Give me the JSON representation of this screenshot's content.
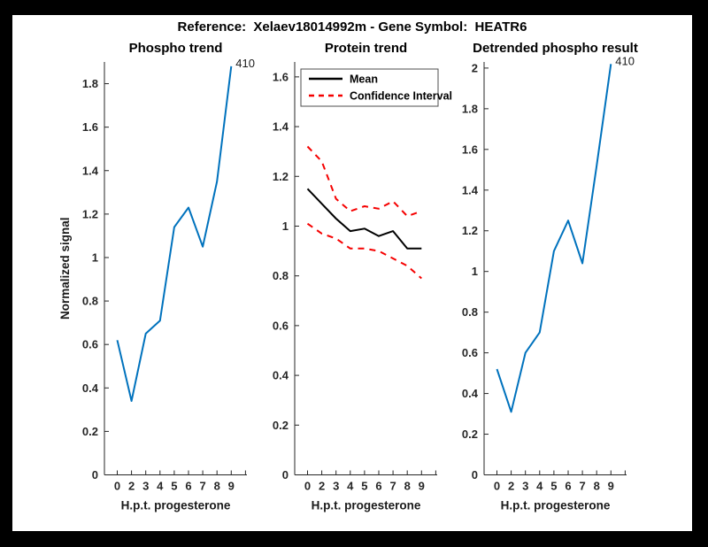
{
  "figure": {
    "suptitle": "Reference:  Xelaev18014992m - Gene Symbol:  HEATR6",
    "background_color": "#ffffff",
    "frame_color": "#000000",
    "axis_color": "#262626",
    "accent_blue": "#0072bd",
    "accent_red": "#f50000"
  },
  "chart_data": [
    {
      "type": "line",
      "title": "Phospho trend",
      "xlabel": "H.p.t. progesterone",
      "ylabel": "Normalized signal",
      "categories": [
        "0",
        "2",
        "3",
        "4",
        "5",
        "6",
        "7",
        "8",
        "9"
      ],
      "x_tick_labels": [
        "0",
        "2",
        "3",
        "4",
        "5",
        "6",
        "7",
        "8",
        "9",
        ""
      ],
      "ylim": [
        0,
        1.9
      ],
      "ytick_step": 0.2,
      "ytick_max": 1.8,
      "grid": "off",
      "series": [
        {
          "name": "Phospho signal",
          "color": "#0072bd",
          "dash": null,
          "values": [
            0.62,
            0.34,
            0.65,
            0.71,
            1.14,
            1.23,
            1.05,
            1.35,
            1.88
          ]
        }
      ],
      "annotation": {
        "text": "410",
        "point_index": 8
      },
      "legend": null
    },
    {
      "type": "line",
      "title": "Protein trend",
      "xlabel": "H.p.t. progesterone",
      "ylabel": "",
      "categories": [
        "0",
        "2",
        "3",
        "4",
        "5",
        "6",
        "7",
        "8",
        "9"
      ],
      "x_tick_labels": [
        "0",
        "2",
        "3",
        "4",
        "5",
        "6",
        "7",
        "8",
        "9",
        ""
      ],
      "ylim": [
        0,
        1.66
      ],
      "ytick_step": 0.2,
      "ytick_max": 1.6,
      "grid": "off",
      "series": [
        {
          "name": "Mean",
          "color": "#000000",
          "dash": null,
          "values": [
            1.15,
            1.09,
            1.03,
            0.98,
            0.99,
            0.96,
            0.98,
            0.91,
            0.91
          ]
        },
        {
          "name": "Confidence Interval upper",
          "color": "#f50000",
          "dash": "7 6",
          "values": [
            1.32,
            1.26,
            1.11,
            1.06,
            1.08,
            1.07,
            1.1,
            1.04,
            1.06
          ]
        },
        {
          "name": "Confidence Interval lower",
          "color": "#f50000",
          "dash": "7 6",
          "values": [
            1.01,
            0.97,
            0.95,
            0.91,
            0.91,
            0.9,
            0.87,
            0.84,
            0.79
          ]
        }
      ],
      "annotation": null,
      "legend": {
        "position": "northeast-inside",
        "entries": [
          {
            "label": "Mean",
            "color": "#000000",
            "dash": null
          },
          {
            "label": "Confidence Interval",
            "color": "#f50000",
            "dash": "6 5"
          }
        ]
      }
    },
    {
      "type": "line",
      "title": "Detrended phospho result",
      "xlabel": "H.p.t. progesterone",
      "ylabel": "",
      "categories": [
        "0",
        "2",
        "3",
        "4",
        "5",
        "6",
        "7",
        "8",
        "9"
      ],
      "x_tick_labels": [
        "0",
        "2",
        "3",
        "4",
        "5",
        "6",
        "7",
        "8",
        "9",
        ""
      ],
      "ylim": [
        0,
        2.03
      ],
      "ytick_step": 0.2,
      "ytick_max": 2.0,
      "grid": "off",
      "series": [
        {
          "name": "Detrended phospho",
          "color": "#0072bd",
          "dash": null,
          "values": [
            0.52,
            0.31,
            0.6,
            0.7,
            1.1,
            1.25,
            1.04,
            1.52,
            2.02
          ]
        }
      ],
      "annotation": {
        "text": "410",
        "point_index": 8
      },
      "legend": null
    }
  ]
}
